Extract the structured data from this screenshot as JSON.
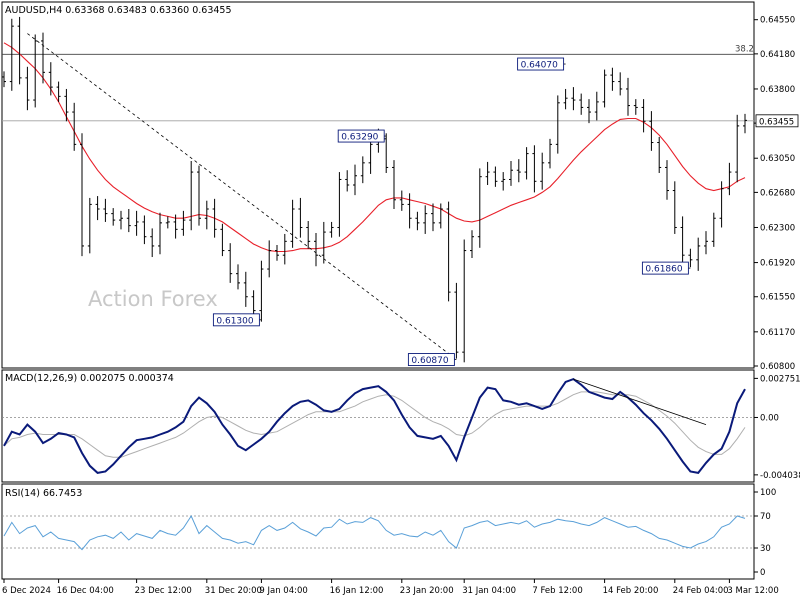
{
  "chart_data": [
    {
      "type": "candlestick",
      "header": "AUDUSD,H4  0.63368 0.63483 0.63360 0.63455",
      "watermark": "Action Forex",
      "ylim": [
        0.608,
        0.6472
      ],
      "y_ticks": [
        "0.64550",
        "0.64180",
        "0.63800",
        "0.63430",
        "0.63050",
        "0.62680",
        "0.62300",
        "0.61920",
        "0.61550",
        "0.61170",
        "0.60800"
      ],
      "current_price": "0.63455",
      "fib_label": "38.2",
      "fib_level": 0.64175,
      "annotations": [
        {
          "label": "0.64070",
          "value": 0.6407
        },
        {
          "label": "0.63290",
          "value": 0.6329
        },
        {
          "label": "0.61300",
          "value": 0.613
        },
        {
          "label": "0.61860",
          "value": 0.6186
        },
        {
          "label": "0.60870",
          "value": 0.6087
        }
      ],
      "series": [
        {
          "name": "close",
          "values": [
            0.6388,
            0.6448,
            0.6392,
            0.6368,
            0.6432,
            0.6398,
            0.6382,
            0.6372,
            0.6355,
            0.632,
            0.621,
            0.6255,
            0.625,
            0.6245,
            0.6238,
            0.624,
            0.6232,
            0.6236,
            0.622,
            0.621,
            0.6235,
            0.6236,
            0.6228,
            0.6238,
            0.629,
            0.624,
            0.625,
            0.6228,
            0.6205,
            0.618,
            0.617,
            0.6155,
            0.614,
            0.6185,
            0.6205,
            0.62,
            0.6215,
            0.625,
            0.623,
            0.6215,
            0.62,
            0.6225,
            0.623,
            0.6282,
            0.6276,
            0.6286,
            0.63,
            0.632,
            0.6326,
            0.6295,
            0.626,
            0.6255,
            0.624,
            0.6235,
            0.6245,
            0.6235,
            0.625,
            0.616,
            0.6095,
            0.6205,
            0.622,
            0.6285,
            0.629,
            0.628,
            0.6282,
            0.6292,
            0.629,
            0.631,
            0.628,
            0.63,
            0.632,
            0.6365,
            0.637,
            0.6368,
            0.636,
            0.6355,
            0.6366,
            0.6395,
            0.6388,
            0.638,
            0.6362,
            0.636,
            0.6345,
            0.6322,
            0.6295,
            0.627,
            0.623,
            0.62,
            0.6195,
            0.621,
            0.6215,
            0.624,
            0.6272,
            0.629,
            0.634,
            0.6346
          ]
        },
        {
          "name": "ma",
          "values": [
            0.643,
            0.6425,
            0.6418,
            0.641,
            0.6402,
            0.6392,
            0.638,
            0.6366,
            0.635,
            0.6334,
            0.6318,
            0.6304,
            0.6292,
            0.6282,
            0.6274,
            0.6268,
            0.6262,
            0.6256,
            0.6251,
            0.6247,
            0.6244,
            0.6242,
            0.624,
            0.624,
            0.6242,
            0.6244,
            0.6243,
            0.624,
            0.6236,
            0.623,
            0.6224,
            0.6218,
            0.6212,
            0.6208,
            0.6205,
            0.6204,
            0.6204,
            0.6205,
            0.6207,
            0.6207,
            0.6207,
            0.6208,
            0.621,
            0.6214,
            0.622,
            0.6228,
            0.6236,
            0.6245,
            0.6254,
            0.626,
            0.6262,
            0.6262,
            0.626,
            0.6258,
            0.6256,
            0.6253,
            0.625,
            0.6245,
            0.624,
            0.6237,
            0.6236,
            0.6238,
            0.6242,
            0.6246,
            0.625,
            0.6254,
            0.6257,
            0.626,
            0.6263,
            0.6268,
            0.6274,
            0.6283,
            0.6293,
            0.6303,
            0.6312,
            0.632,
            0.6328,
            0.6336,
            0.6342,
            0.6347,
            0.6348,
            0.6348,
            0.6344,
            0.6338,
            0.633,
            0.632,
            0.6308,
            0.6296,
            0.6286,
            0.6278,
            0.6272,
            0.627,
            0.6272,
            0.6274,
            0.628,
            0.6284
          ]
        }
      ]
    },
    {
      "type": "line",
      "header": "MACD(12,26,9) 0.002075 0.000374",
      "ylim": [
        -0.0044,
        0.0032
      ],
      "y_ticks": [
        {
          "label": "0.002751",
          "value": 0.002751
        },
        {
          "label": "0.00",
          "value": 0.0
        },
        {
          "label": "-0.004038",
          "value": -0.004038
        }
      ],
      "series": [
        {
          "name": "MACD",
          "values": [
            -0.002,
            -0.001,
            -0.0012,
            -0.0005,
            -0.001,
            -0.0018,
            -0.0015,
            -0.0011,
            -0.0012,
            -0.0014,
            -0.0025,
            -0.0034,
            -0.0039,
            -0.0038,
            -0.0033,
            -0.0027,
            -0.0021,
            -0.0016,
            -0.0015,
            -0.0014,
            -0.0012,
            -0.001,
            -0.0007,
            -0.0003,
            0.0008,
            0.0014,
            0.001,
            0.0004,
            -0.0005,
            -0.0012,
            -0.002,
            -0.0023,
            -0.0019,
            -0.0015,
            -0.001,
            -0.0003,
            0.0003,
            0.0008,
            0.0011,
            0.0012,
            0.0009,
            0.0005,
            0.0004,
            0.0006,
            0.0012,
            0.0017,
            0.002,
            0.0021,
            0.0022,
            0.0018,
            0.0012,
            0.0002,
            -0.0007,
            -0.0013,
            -0.0014,
            -0.0015,
            -0.0013,
            -0.002,
            -0.003,
            -0.0014,
            0.0,
            0.0014,
            0.0021,
            0.002,
            0.0012,
            0.0011,
            0.0009,
            0.001,
            0.0008,
            0.0006,
            0.0008,
            0.0017,
            0.0025,
            0.0027,
            0.0023,
            0.0018,
            0.0016,
            0.0014,
            0.0013,
            0.0018,
            0.0014,
            0.0009,
            0.0003,
            -0.0002,
            -0.0008,
            -0.0015,
            -0.0023,
            -0.0031,
            -0.0038,
            -0.0039,
            -0.0032,
            -0.0026,
            -0.0022,
            -0.001,
            0.001,
            0.002
          ]
        },
        {
          "name": "Signal",
          "values": [
            -0.002,
            -0.0015,
            -0.0014,
            -0.0012,
            -0.0011,
            -0.0012,
            -0.0012,
            -0.0012,
            -0.0012,
            -0.0012,
            -0.0015,
            -0.0019,
            -0.0023,
            -0.0027,
            -0.0028,
            -0.0028,
            -0.0026,
            -0.0024,
            -0.0022,
            -0.002,
            -0.0018,
            -0.0016,
            -0.0014,
            -0.0011,
            -0.0007,
            -0.0003,
            0.0,
            0.0001,
            0.0,
            -0.0003,
            -0.0006,
            -0.0009,
            -0.0011,
            -0.0012,
            -0.0011,
            -0.001,
            -0.0007,
            -0.0004,
            -0.0001,
            0.0002,
            0.0004,
            0.0004,
            0.0004,
            0.0004,
            0.0006,
            0.0008,
            0.0011,
            0.0013,
            0.0015,
            0.0016,
            0.0015,
            0.0012,
            0.0008,
            0.0004,
            0.0,
            -0.0003,
            -0.0005,
            -0.0008,
            -0.0012,
            -0.0013,
            -0.0011,
            -0.0007,
            -0.0002,
            0.0002,
            0.0005,
            0.0006,
            0.0007,
            0.0008,
            0.0008,
            0.0008,
            0.0008,
            0.001,
            0.0013,
            0.0016,
            0.0018,
            0.0018,
            0.0018,
            0.0017,
            0.0016,
            0.0016,
            0.0016,
            0.0015,
            0.0012,
            0.0009,
            0.0005,
            0.0001,
            -0.0004,
            -0.001,
            -0.0016,
            -0.0021,
            -0.0024,
            -0.0026,
            -0.0026,
            -0.0022,
            -0.0015,
            -0.0007
          ]
        }
      ]
    },
    {
      "type": "line",
      "header": "RSI(14) 66.7453",
      "ylim": [
        0,
        100
      ],
      "y_ticks": [
        {
          "label": "100",
          "value": 100
        },
        {
          "label": "70",
          "value": 70
        },
        {
          "label": "30",
          "value": 30
        },
        {
          "label": "0",
          "value": 0
        }
      ],
      "levels": [
        70,
        30
      ],
      "series": [
        {
          "name": "RSI",
          "values": [
            45,
            62,
            48,
            55,
            58,
            44,
            50,
            42,
            40,
            38,
            28,
            40,
            44,
            46,
            42,
            50,
            40,
            48,
            45,
            42,
            52,
            48,
            46,
            55,
            70,
            48,
            58,
            50,
            42,
            40,
            36,
            38,
            34,
            52,
            58,
            52,
            55,
            62,
            54,
            50,
            45,
            55,
            56,
            66,
            60,
            63,
            62,
            68,
            64,
            52,
            46,
            48,
            45,
            44,
            50,
            46,
            52,
            38,
            30,
            55,
            58,
            62,
            64,
            58,
            60,
            62,
            60,
            64,
            56,
            60,
            62,
            66,
            64,
            63,
            60,
            58,
            62,
            68,
            64,
            60,
            56,
            57,
            52,
            48,
            42,
            40,
            36,
            32,
            30,
            35,
            38,
            44,
            56,
            60,
            70,
            67
          ]
        }
      ]
    }
  ],
  "x_labels": [
    {
      "label": "6 Dec 2024",
      "index": 0
    },
    {
      "label": "16 Dec 04:00",
      "index": 7
    },
    {
      "label": "23 Dec 12:00",
      "index": 17
    },
    {
      "label": "31 Dec 20:00",
      "index": 26
    },
    {
      "label": "9 Jan 04:00",
      "index": 33
    },
    {
      "label": "16 Jan 12:00",
      "index": 42
    },
    {
      "label": "23 Jan 20:00",
      "index": 51
    },
    {
      "label": "31 Jan 04:00",
      "index": 59
    },
    {
      "label": "7 Feb 12:00",
      "index": 68
    },
    {
      "label": "14 Feb 20:00",
      "index": 77
    },
    {
      "label": "24 Feb 04:00",
      "index": 86
    },
    {
      "label": "3 Mar 12:00",
      "index": 93
    }
  ],
  "colors": {
    "candle": "#000000",
    "ma": "#e8202a",
    "macd": "#0a1a7a",
    "signal": "#b0b0b0",
    "rsi": "#5aa0d8",
    "annotation": "#0a1a7a"
  }
}
